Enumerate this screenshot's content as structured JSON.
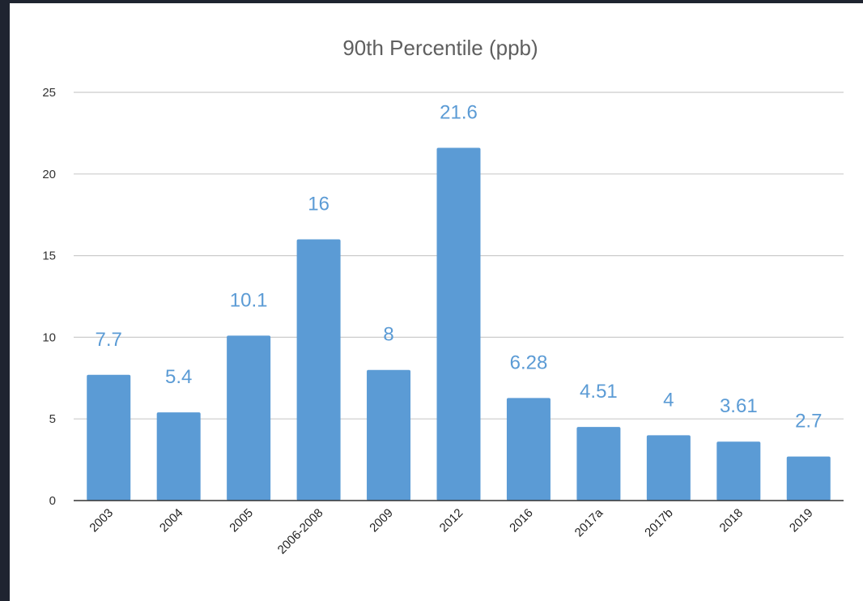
{
  "chart_data": {
    "type": "bar",
    "title": "90th Percentile (ppb)",
    "xlabel": "",
    "ylabel": "",
    "ylim": [
      0,
      25
    ],
    "yticks": [
      0,
      5,
      10,
      15,
      20,
      25
    ],
    "grid": true,
    "legend": "none",
    "categories": [
      "2003",
      "2004",
      "2005",
      "2006-2008",
      "2009",
      "2012",
      "2016",
      "2017a",
      "2017b",
      "2018",
      "2019"
    ],
    "values": [
      7.7,
      5.4,
      10.1,
      16,
      8,
      21.6,
      6.28,
      4.51,
      4,
      3.61,
      2.7
    ],
    "data_labels": [
      "7.7",
      "5.4",
      "10.1",
      "16",
      "8",
      "21.6",
      "6.28",
      "4.51",
      "4",
      "3.61",
      "2.7"
    ],
    "colors": {
      "bar": "#5b9bd5",
      "label": "#5b9bd5",
      "grid": "#cccccc",
      "axis": "#333333",
      "background": "#ffffff",
      "frame": "#1f2430"
    }
  }
}
